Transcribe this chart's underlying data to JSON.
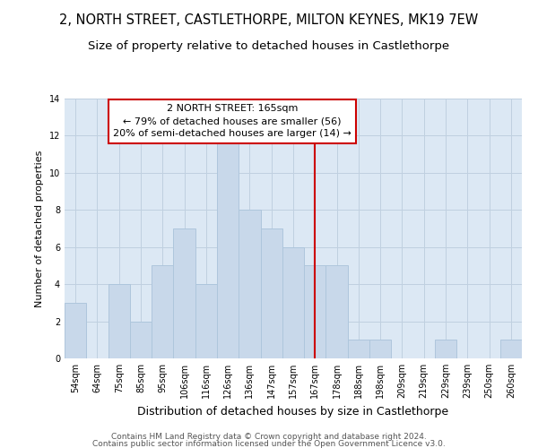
{
  "title_line1": "2, NORTH STREET, CASTLETHORPE, MILTON KEYNES, MK19 7EW",
  "title_line2": "Size of property relative to detached houses in Castlethorpe",
  "xlabel": "Distribution of detached houses by size in Castlethorpe",
  "ylabel": "Number of detached properties",
  "bins": [
    "54sqm",
    "64sqm",
    "75sqm",
    "85sqm",
    "95sqm",
    "106sqm",
    "116sqm",
    "126sqm",
    "136sqm",
    "147sqm",
    "157sqm",
    "167sqm",
    "178sqm",
    "188sqm",
    "198sqm",
    "209sqm",
    "219sqm",
    "229sqm",
    "239sqm",
    "250sqm",
    "260sqm"
  ],
  "values": [
    3,
    0,
    4,
    2,
    5,
    7,
    4,
    12,
    8,
    7,
    6,
    5,
    5,
    1,
    1,
    0,
    0,
    1,
    0,
    0,
    1
  ],
  "bar_color": "#c8d8ea",
  "bar_edge_color": "#aec6dc",
  "vline_color": "#cc0000",
  "vline_x": 11.5,
  "annotation_text_line1": "2 NORTH STREET: 165sqm",
  "annotation_text_line2": "← 79% of detached houses are smaller (56)",
  "annotation_text_line3": "20% of semi-detached houses are larger (14) →",
  "annotation_box_facecolor": "#ffffff",
  "annotation_box_edgecolor": "#cc0000",
  "ylim": [
    0,
    14
  ],
  "yticks": [
    0,
    2,
    4,
    6,
    8,
    10,
    12,
    14
  ],
  "grid_color": "#c0d0e0",
  "bg_color": "#dce8f4",
  "footer_line1": "Contains HM Land Registry data © Crown copyright and database right 2024.",
  "footer_line2": "Contains public sector information licensed under the Open Government Licence v3.0.",
  "title1_fontsize": 10.5,
  "title2_fontsize": 9.5,
  "xlabel_fontsize": 9,
  "ylabel_fontsize": 8,
  "tick_fontsize": 7,
  "footer_fontsize": 6.5,
  "annotation_fontsize": 8
}
